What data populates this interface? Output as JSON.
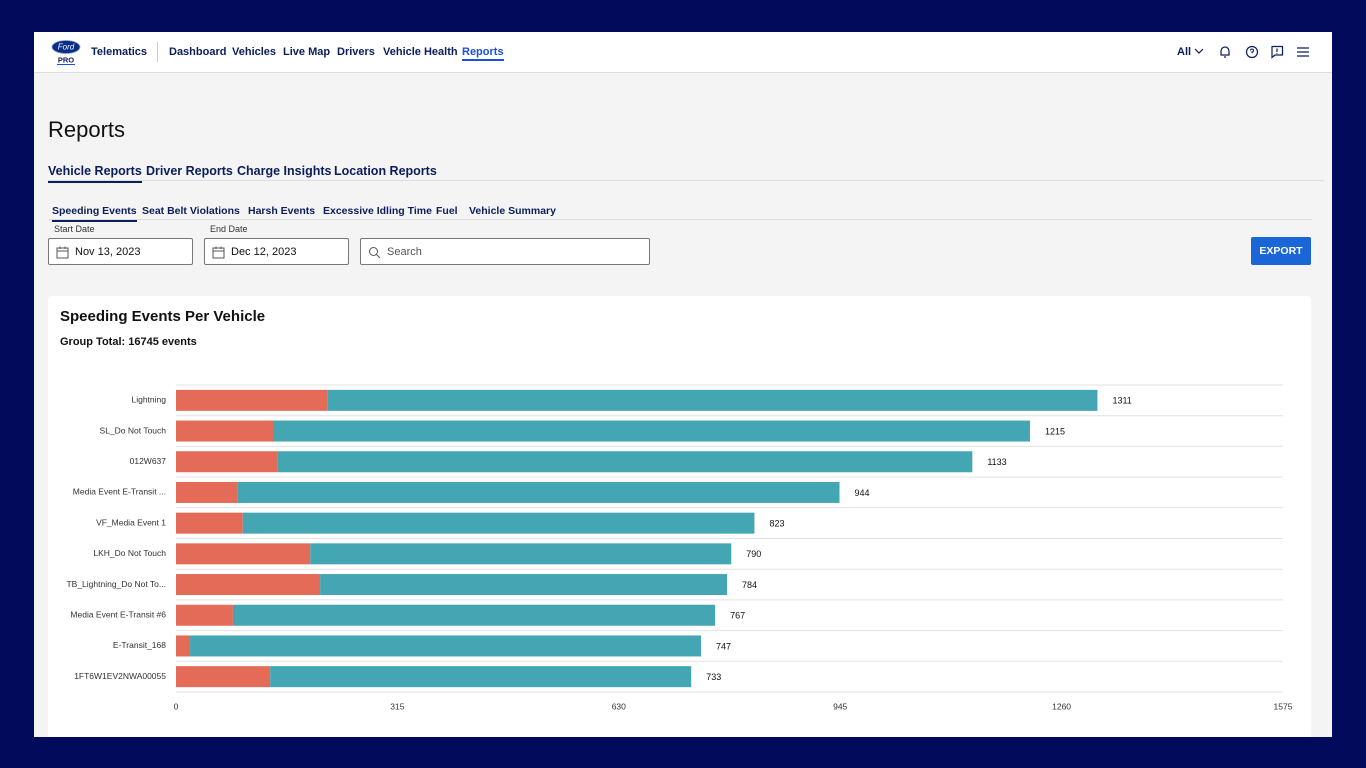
{
  "header": {
    "logo_text": "Ford",
    "logo_sub": "PRO",
    "product": "Telematics",
    "nav": [
      "Dashboard",
      "Vehicles",
      "Live Map",
      "Drivers",
      "Vehicle Health",
      "Reports"
    ],
    "filter": "All"
  },
  "page_title": "Reports",
  "tabs": [
    "Vehicle Reports",
    "Driver Reports",
    "Charge Insights",
    "Location Reports"
  ],
  "subtabs": [
    "Speeding Events",
    "Seat Belt Violations",
    "Harsh Events",
    "Excessive Idling Time",
    "Fuel",
    "Vehicle Summary"
  ],
  "filters": {
    "start_label": "Start Date",
    "start_value": "Nov 13, 2023",
    "end_label": "End Date",
    "end_value": "Dec 12, 2023",
    "search_placeholder": "Search",
    "export": "EXPORT"
  },
  "chart_data": {
    "type": "bar",
    "orientation": "horizontal",
    "stacked": true,
    "title": "Speeding Events Per Vehicle",
    "subtitle": "Group Total: 16745 events",
    "categories": [
      "Lightning",
      "SL_Do Not Touch",
      "012W637",
      "Media Event E-Transit ...",
      "VF_Media Event 1",
      "LKH_Do Not Touch",
      "TB_Lightning_Do Not To...",
      "Media Event E-Transit #6",
      "E-Transit_168",
      "1FT6W1EV2NWA00055"
    ],
    "series": [
      {
        "color": "#e46b58",
        "values": [
          216,
          138,
          145,
          88,
          95,
          191,
          205,
          81,
          20,
          134
        ]
      },
      {
        "color": "#44a6b3",
        "values": [
          1095,
          1077,
          988,
          856,
          728,
          599,
          579,
          686,
          727,
          599
        ]
      }
    ],
    "totals": [
      1311,
      1215,
      1133,
      944,
      823,
      790,
      784,
      767,
      747,
      733
    ],
    "xlim": [
      0,
      1575
    ],
    "xticks": [
      0,
      315,
      630,
      945,
      1260,
      1575
    ]
  }
}
